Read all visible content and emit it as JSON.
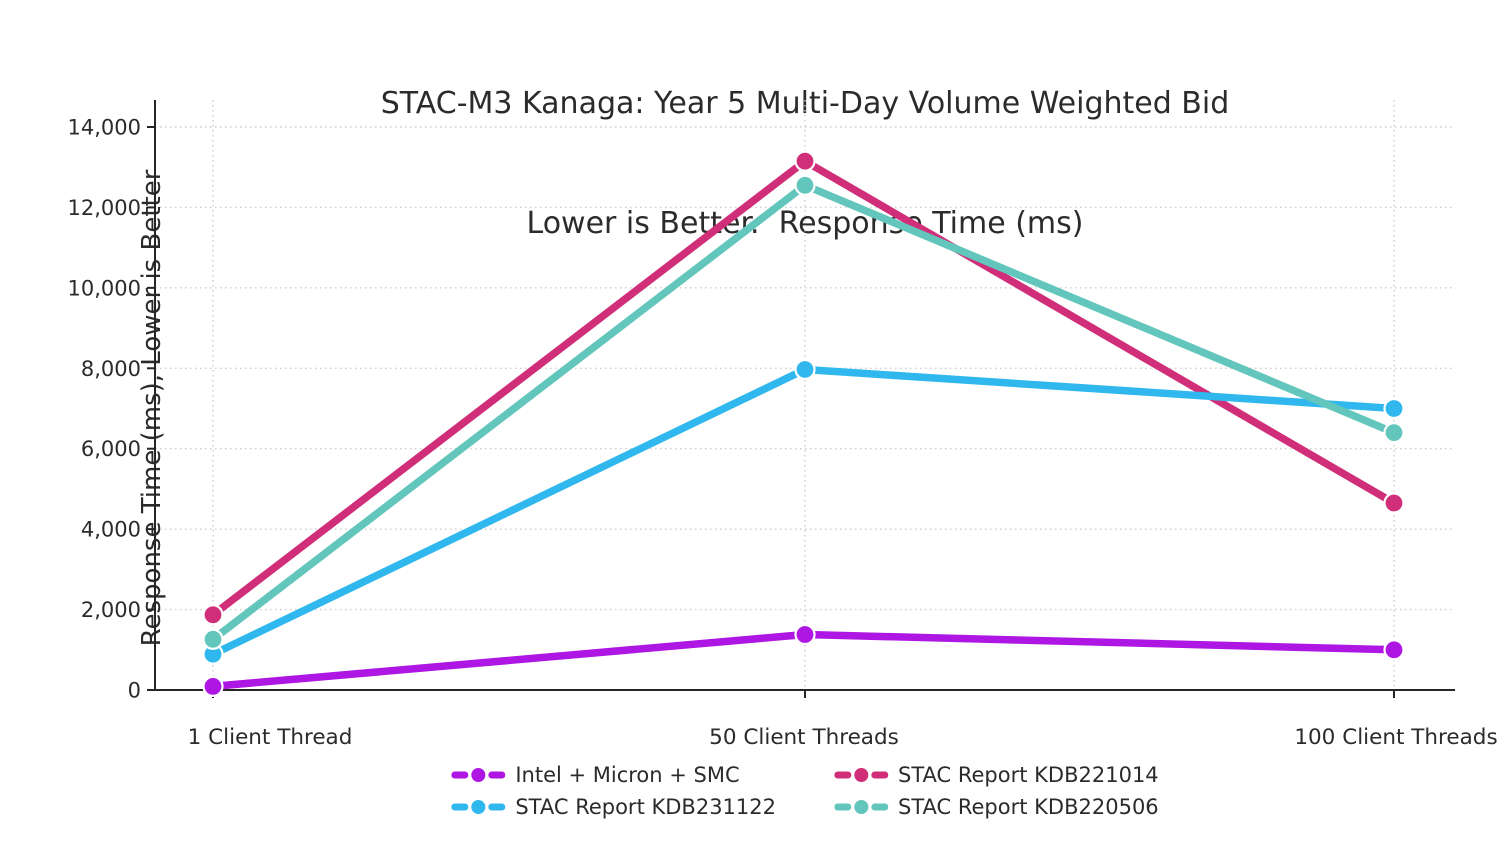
{
  "title": {
    "line1": "STAC-M3 Kanaga: Year 5 Multi-Day Volume Weighted Bid",
    "line2": "Lower is Better.  Response Time (ms)"
  },
  "chart_data": {
    "type": "line",
    "title": "STAC-M3 Kanaga: Year 5 Multi-Day Volume Weighted Bid\nLower is Better.  Response Time (ms)",
    "xlabel": "",
    "ylabel": "Response Time (ms), Lower is Better",
    "categories": [
      "1 Client Thread",
      "50 Client Threads",
      "100 Client Threads"
    ],
    "series": [
      {
        "name": "Intel + Micron + SMC",
        "color": "#AE16E3",
        "values": [
          90,
          1380,
          1000
        ]
      },
      {
        "name": "STAC Report KDB221014",
        "color": "#D02E79",
        "values": [
          1870,
          13150,
          4650
        ]
      },
      {
        "name": "STAC Report KDB231122",
        "color": "#30B8EE",
        "values": [
          890,
          7970,
          7000
        ]
      },
      {
        "name": "STAC Report KDB220506",
        "color": "#62C6BC",
        "values": [
          1260,
          12550,
          6400
        ]
      }
    ],
    "ylim": [
      0,
      14670
    ],
    "yticks": [
      0,
      2000,
      4000,
      6000,
      8000,
      10000,
      12000,
      14000
    ],
    "ytick_labels": [
      "0",
      "2,000",
      "4,000",
      "6,000",
      "8,000",
      "10,000",
      "12,000",
      "14,000"
    ],
    "grid": true,
    "grid_style": "dotted",
    "legend_position": "bottom-center",
    "colors": {
      "axis": "#262626",
      "grid": "#cccccc",
      "text": "#2b2b2b",
      "marker_edge": "#ffffff"
    }
  }
}
